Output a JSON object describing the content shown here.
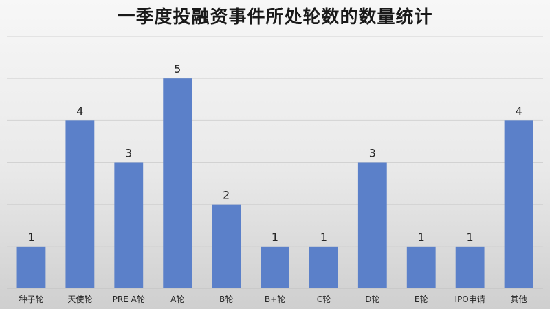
{
  "chart_data": {
    "type": "bar",
    "title": "一季度投融资事件所处轮数的数量统计",
    "xlabel": "",
    "ylabel": "",
    "categories": [
      "种子轮",
      "天使轮",
      "PRE A轮",
      "A轮",
      "B轮",
      "B+轮",
      "C轮",
      "D轮",
      "E轮",
      "IPO申请",
      "其他"
    ],
    "values": [
      1,
      4,
      3,
      5,
      2,
      1,
      1,
      3,
      1,
      1,
      4
    ],
    "ylim": [
      0,
      6
    ],
    "grid": true,
    "legend": "none",
    "bar_color": "#5b80c9"
  }
}
